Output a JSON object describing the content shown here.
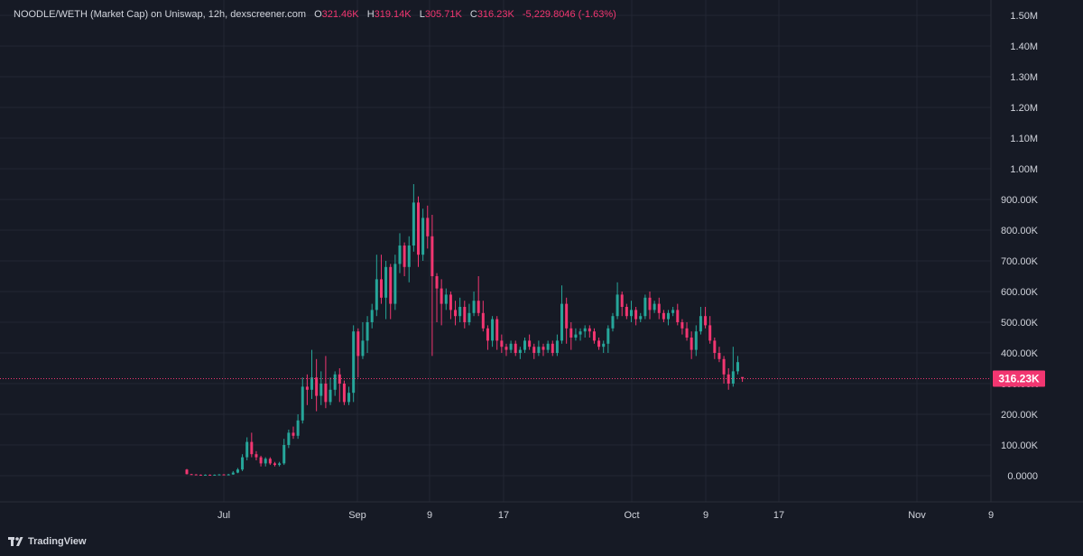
{
  "legend": {
    "symbol": "NOODLE/WETH (Market Cap) on Uniswap, 12h, dexscreener.com",
    "o_key": "O",
    "o_val": "321.46K",
    "h_key": "H",
    "h_val": "319.14K",
    "l_key": "L",
    "l_val": "305.71K",
    "c_key": "C",
    "c_val": "316.23K",
    "change": "-5,229.8046 (-1.63%)"
  },
  "branding": {
    "logo_text": "TradingView"
  },
  "colors": {
    "up": "#26a69a",
    "down": "#f23671",
    "bg": "#161a25",
    "grid": "#232733",
    "text": "#d1d4dc",
    "last_price": "#f23671"
  },
  "chart_data": {
    "type": "candlestick",
    "interval": "12h",
    "x_tick_labels": [
      "Jul",
      "Sep",
      "9",
      "17",
      "Oct",
      "9",
      "17",
      "Nov",
      "9"
    ],
    "y_tick_labels": [
      "0.0000",
      "100.00K",
      "200.00K",
      "300.00K",
      "400.00K",
      "500.00K",
      "600.00K",
      "700.00K",
      "800.00K",
      "900.00K",
      "1.00M",
      "1.10M",
      "1.20M",
      "1.30M",
      "1.40M",
      "1.50M"
    ],
    "ylim": [
      -80000,
      1550000
    ],
    "last_price": 316230,
    "last_price_label": "316.23K",
    "candles": [
      [
        20000,
        5000,
        22000,
        4000
      ],
      [
        5000,
        4000,
        6000,
        3000
      ],
      [
        4000,
        3000,
        5000,
        2000
      ],
      [
        3000,
        2000,
        4000,
        1000
      ],
      [
        2000,
        3000,
        4000,
        1000
      ],
      [
        3000,
        2000,
        4000,
        1000
      ],
      [
        2000,
        3000,
        4000,
        1000
      ],
      [
        3000,
        4000,
        5000,
        2000
      ],
      [
        4000,
        3000,
        5000,
        2000
      ],
      [
        3000,
        4000,
        6000,
        2000
      ],
      [
        4000,
        10000,
        15000,
        3000
      ],
      [
        10000,
        20000,
        25000,
        8000
      ],
      [
        20000,
        60000,
        70000,
        15000
      ],
      [
        60000,
        110000,
        125000,
        50000
      ],
      [
        110000,
        70000,
        140000,
        60000
      ],
      [
        70000,
        60000,
        80000,
        50000
      ],
      [
        60000,
        40000,
        65000,
        30000
      ],
      [
        40000,
        55000,
        60000,
        30000
      ],
      [
        55000,
        40000,
        60000,
        35000
      ],
      [
        40000,
        35000,
        45000,
        30000
      ],
      [
        35000,
        40000,
        45000,
        30000
      ],
      [
        40000,
        100000,
        120000,
        35000
      ],
      [
        100000,
        140000,
        150000,
        90000
      ],
      [
        140000,
        130000,
        160000,
        120000
      ],
      [
        130000,
        180000,
        200000,
        120000
      ],
      [
        180000,
        290000,
        320000,
        170000
      ],
      [
        290000,
        280000,
        330000,
        230000
      ],
      [
        280000,
        320000,
        410000,
        250000
      ],
      [
        320000,
        260000,
        380000,
        210000
      ],
      [
        260000,
        300000,
        340000,
        230000
      ],
      [
        300000,
        240000,
        390000,
        220000
      ],
      [
        240000,
        280000,
        320000,
        230000
      ],
      [
        280000,
        330000,
        340000,
        260000
      ],
      [
        330000,
        300000,
        350000,
        240000
      ],
      [
        300000,
        240000,
        310000,
        230000
      ],
      [
        240000,
        270000,
        290000,
        230000
      ],
      [
        270000,
        470000,
        490000,
        240000
      ],
      [
        470000,
        390000,
        480000,
        320000
      ],
      [
        390000,
        440000,
        500000,
        380000
      ],
      [
        440000,
        500000,
        520000,
        400000
      ],
      [
        500000,
        540000,
        560000,
        480000
      ],
      [
        540000,
        640000,
        720000,
        520000
      ],
      [
        640000,
        580000,
        720000,
        560000
      ],
      [
        580000,
        680000,
        700000,
        510000
      ],
      [
        680000,
        560000,
        690000,
        510000
      ],
      [
        560000,
        690000,
        720000,
        540000
      ],
      [
        690000,
        750000,
        790000,
        660000
      ],
      [
        750000,
        680000,
        760000,
        650000
      ],
      [
        680000,
        750000,
        780000,
        630000
      ],
      [
        750000,
        890000,
        950000,
        730000
      ],
      [
        890000,
        720000,
        910000,
        680000
      ],
      [
        720000,
        840000,
        870000,
        700000
      ],
      [
        840000,
        780000,
        880000,
        740000
      ],
      [
        780000,
        650000,
        850000,
        390000
      ],
      [
        650000,
        610000,
        660000,
        500000
      ],
      [
        610000,
        560000,
        640000,
        490000
      ],
      [
        560000,
        590000,
        610000,
        540000
      ],
      [
        590000,
        540000,
        600000,
        510000
      ],
      [
        540000,
        520000,
        570000,
        490000
      ],
      [
        520000,
        550000,
        580000,
        500000
      ],
      [
        550000,
        500000,
        570000,
        480000
      ],
      [
        500000,
        530000,
        560000,
        490000
      ],
      [
        530000,
        570000,
        600000,
        520000
      ],
      [
        570000,
        530000,
        650000,
        520000
      ],
      [
        530000,
        480000,
        570000,
        470000
      ],
      [
        480000,
        440000,
        490000,
        410000
      ],
      [
        440000,
        510000,
        520000,
        420000
      ],
      [
        510000,
        440000,
        520000,
        410000
      ],
      [
        440000,
        420000,
        460000,
        400000
      ],
      [
        420000,
        410000,
        430000,
        390000
      ],
      [
        410000,
        430000,
        440000,
        400000
      ],
      [
        430000,
        400000,
        440000,
        390000
      ],
      [
        400000,
        410000,
        420000,
        380000
      ],
      [
        410000,
        440000,
        450000,
        400000
      ],
      [
        440000,
        420000,
        460000,
        410000
      ],
      [
        420000,
        400000,
        430000,
        380000
      ],
      [
        400000,
        420000,
        440000,
        390000
      ],
      [
        420000,
        410000,
        430000,
        390000
      ],
      [
        410000,
        430000,
        440000,
        400000
      ],
      [
        430000,
        400000,
        440000,
        390000
      ],
      [
        400000,
        440000,
        460000,
        390000
      ],
      [
        440000,
        560000,
        620000,
        430000
      ],
      [
        560000,
        480000,
        580000,
        430000
      ],
      [
        480000,
        450000,
        500000,
        410000
      ],
      [
        450000,
        460000,
        480000,
        440000
      ],
      [
        460000,
        470000,
        480000,
        440000
      ],
      [
        470000,
        480000,
        490000,
        450000
      ],
      [
        480000,
        470000,
        490000,
        450000
      ],
      [
        470000,
        440000,
        480000,
        430000
      ],
      [
        440000,
        420000,
        450000,
        410000
      ],
      [
        420000,
        430000,
        440000,
        400000
      ],
      [
        430000,
        480000,
        490000,
        400000
      ],
      [
        480000,
        520000,
        530000,
        470000
      ],
      [
        520000,
        590000,
        630000,
        510000
      ],
      [
        590000,
        550000,
        600000,
        520000
      ],
      [
        550000,
        520000,
        560000,
        510000
      ],
      [
        520000,
        540000,
        570000,
        500000
      ],
      [
        540000,
        510000,
        550000,
        490000
      ],
      [
        510000,
        520000,
        530000,
        500000
      ],
      [
        520000,
        580000,
        590000,
        510000
      ],
      [
        580000,
        540000,
        600000,
        510000
      ],
      [
        540000,
        560000,
        570000,
        530000
      ],
      [
        560000,
        530000,
        580000,
        510000
      ],
      [
        530000,
        510000,
        540000,
        500000
      ],
      [
        510000,
        530000,
        540000,
        490000
      ],
      [
        530000,
        540000,
        550000,
        520000
      ],
      [
        540000,
        500000,
        560000,
        490000
      ],
      [
        500000,
        480000,
        510000,
        460000
      ],
      [
        480000,
        450000,
        500000,
        440000
      ],
      [
        450000,
        410000,
        470000,
        380000
      ],
      [
        410000,
        470000,
        490000,
        390000
      ],
      [
        470000,
        520000,
        550000,
        460000
      ],
      [
        520000,
        490000,
        550000,
        480000
      ],
      [
        490000,
        440000,
        520000,
        430000
      ],
      [
        440000,
        400000,
        450000,
        380000
      ],
      [
        400000,
        380000,
        420000,
        370000
      ],
      [
        380000,
        330000,
        390000,
        300000
      ],
      [
        330000,
        300000,
        350000,
        280000
      ],
      [
        300000,
        340000,
        420000,
        290000
      ],
      [
        340000,
        370000,
        390000,
        330000
      ],
      [
        321460,
        316230,
        319140,
        305710
      ]
    ]
  }
}
